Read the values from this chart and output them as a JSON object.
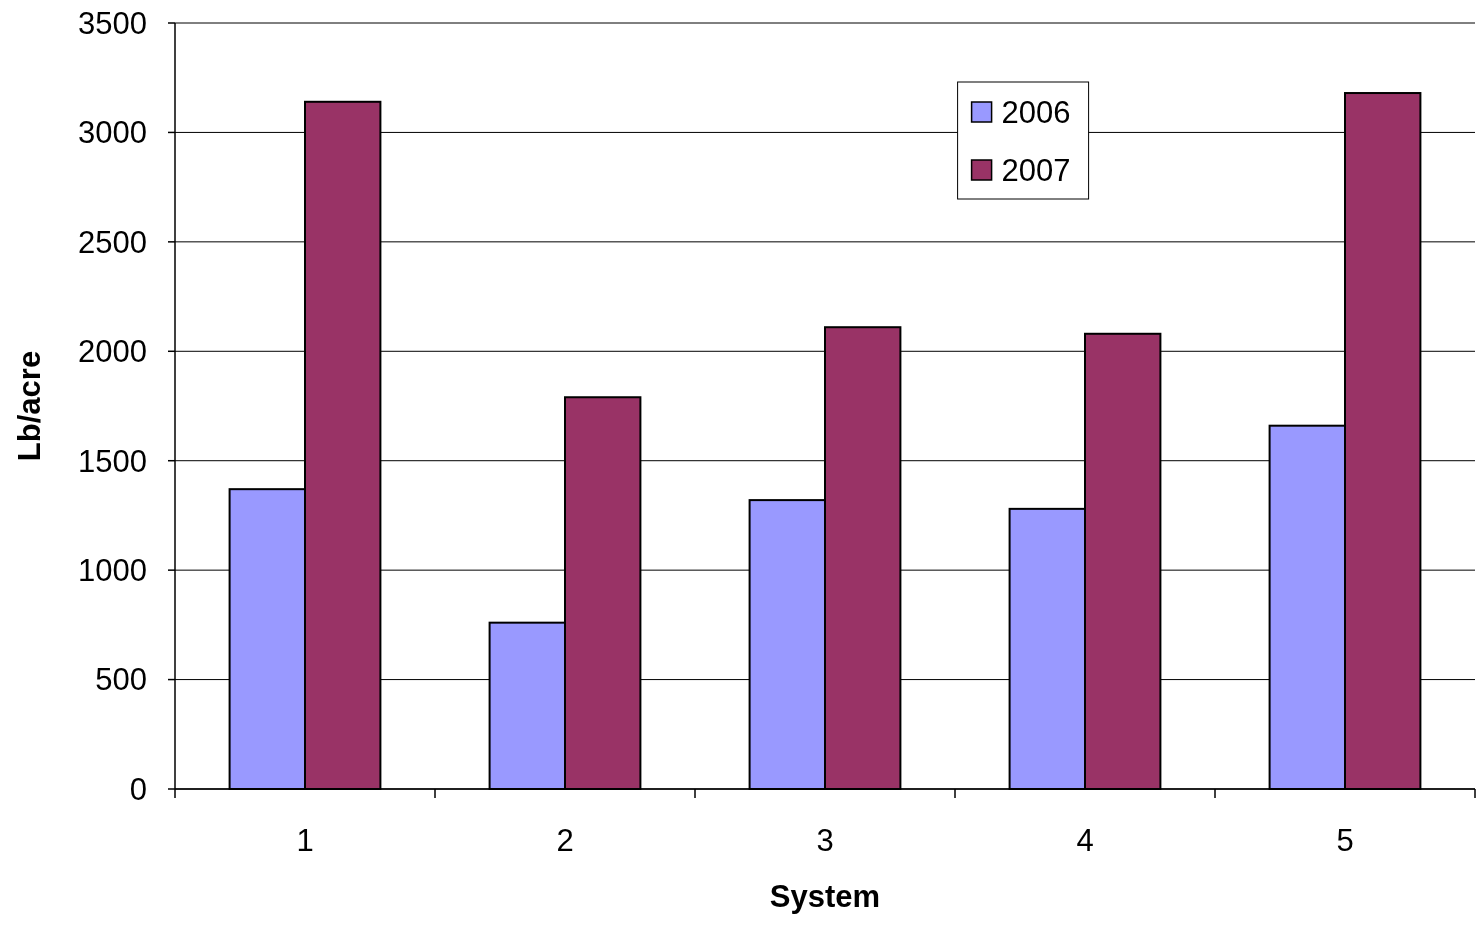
{
  "chart_data": {
    "type": "bar",
    "xlabel": "System",
    "ylabel": "Lb/acre",
    "categories": [
      "1",
      "2",
      "3",
      "4",
      "5"
    ],
    "series": [
      {
        "name": "2006",
        "color": "#9999ff",
        "values": [
          1370,
          760,
          1320,
          1280,
          1660
        ]
      },
      {
        "name": "2007",
        "color": "#993366",
        "values": [
          3140,
          1790,
          2110,
          2080,
          3180
        ]
      }
    ],
    "ylim": [
      0,
      3500
    ],
    "yticks": [
      0,
      500,
      1000,
      1500,
      2000,
      2500,
      3000,
      3500
    ],
    "grid": "y",
    "legend": "top right"
  }
}
